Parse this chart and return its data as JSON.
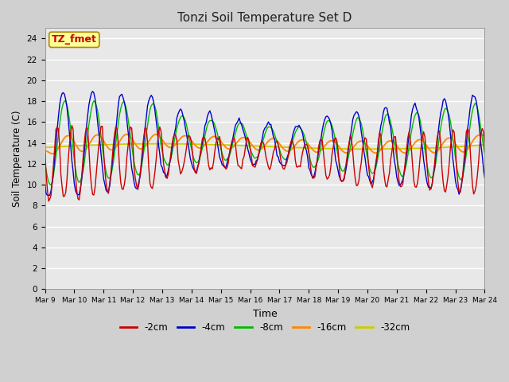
{
  "title": "Tonzi Soil Temperature Set D",
  "xlabel": "Time",
  "ylabel": "Soil Temperature (C)",
  "annotation": "TZ_fmet",
  "ylim": [
    0,
    25
  ],
  "yticks": [
    0,
    2,
    4,
    6,
    8,
    10,
    12,
    14,
    16,
    18,
    20,
    22,
    24
  ],
  "colors": {
    "-2cm": "#cc0000",
    "-4cm": "#0000cc",
    "-8cm": "#00bb00",
    "-16cm": "#ff8800",
    "-32cm": "#cccc00"
  },
  "legend_order": [
    "-2cm",
    "-4cm",
    "-8cm",
    "-16cm",
    "-32cm"
  ],
  "fig_facecolor": "#d0d0d0",
  "ax_facecolor": "#e8e8e8",
  "annotation_bg": "#ffff99",
  "annotation_border": "#aa8800"
}
